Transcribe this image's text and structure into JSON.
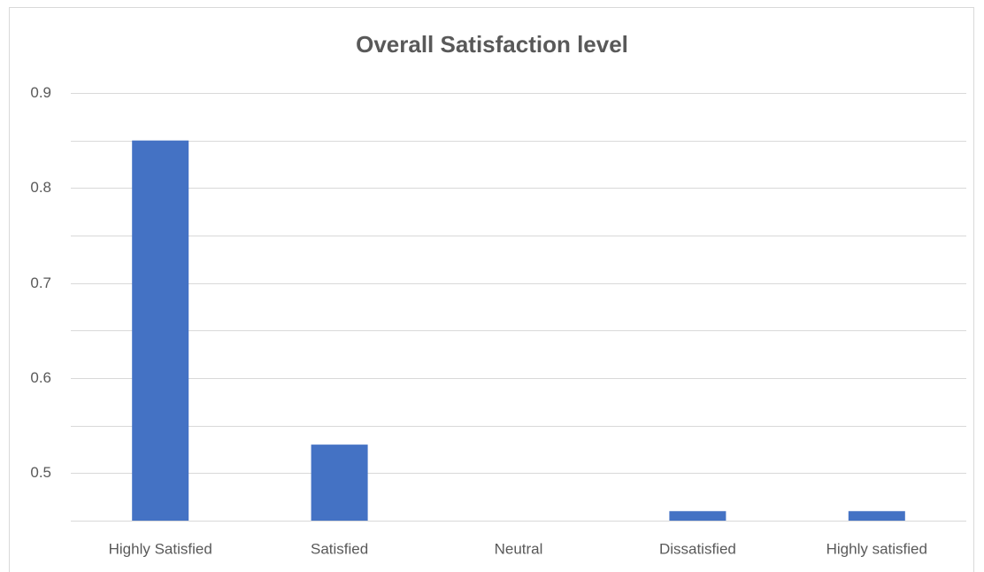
{
  "chart_data": {
    "type": "bar",
    "title": "Overall Satisfaction level",
    "categories": [
      "Highly Satisfied",
      "Satisfied",
      "Neutral",
      "Dissatisfied",
      "Highly satisfied"
    ],
    "values": [
      0.85,
      0.53,
      null,
      0.46,
      0.46
    ],
    "color": "#4472c4",
    "ylim": [
      0.45,
      0.9
    ],
    "yticks": [
      0.5,
      0.6,
      0.7,
      0.8,
      0.9
    ],
    "yminor": [
      0.45,
      0.55,
      0.65,
      0.75,
      0.85
    ],
    "grid": true
  }
}
